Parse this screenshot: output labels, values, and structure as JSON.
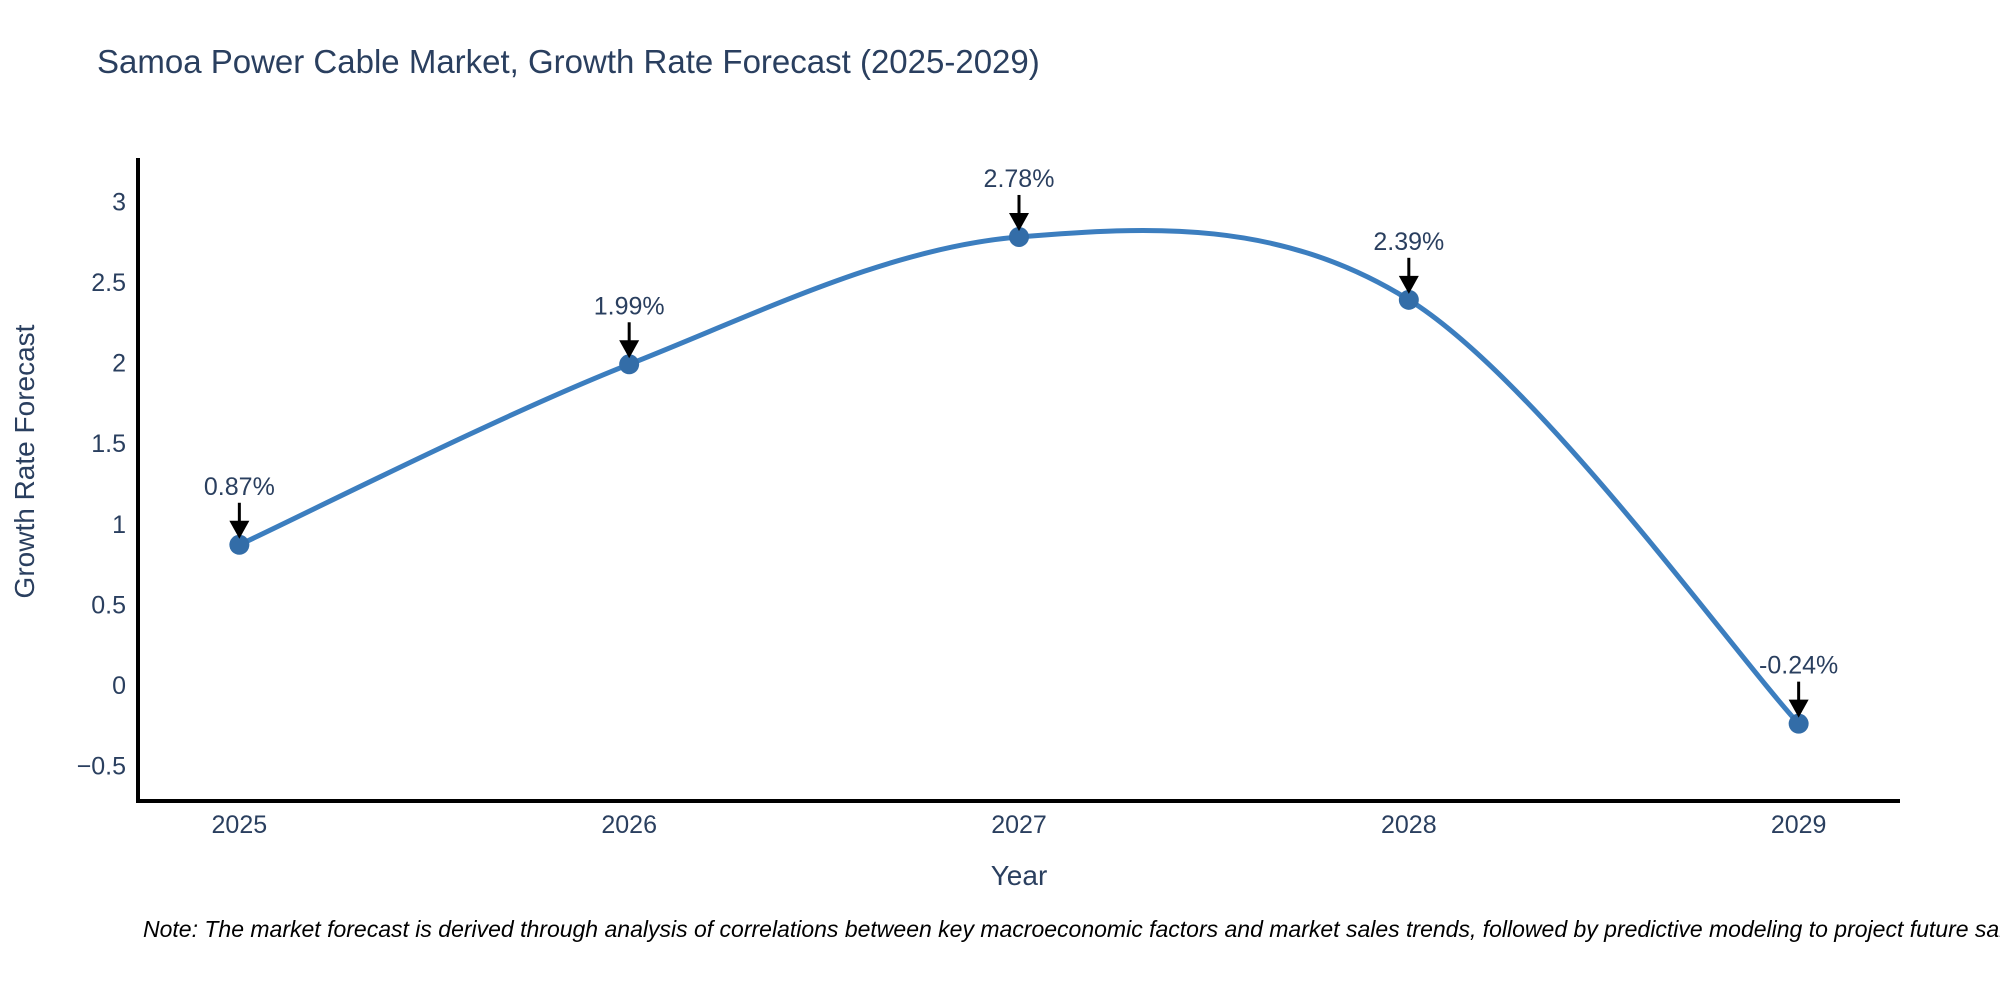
{
  "figure": {
    "title": "Samoa Power Cable Market, Growth Rate Forecast (2025-2029)",
    "note": "Note: The market forecast is derived through analysis of correlations between key macroeconomic factors and market sales trends, followed by predictive modeling to project future sales."
  },
  "chart_data": {
    "type": "line",
    "title": "Samoa Power Cable Market, Growth Rate Forecast (2025-2029)",
    "xlabel": "Year",
    "ylabel": "Growth Rate Forecast",
    "x": [
      2025,
      2026,
      2027,
      2028,
      2029
    ],
    "x_tick_labels": [
      "2025",
      "2026",
      "2027",
      "2028",
      "2029"
    ],
    "series": [
      {
        "name": "Growth Rate Forecast",
        "values": [
          0.87,
          1.99,
          2.78,
          2.39,
          -0.24
        ]
      }
    ],
    "point_labels": [
      "0.87%",
      "1.99%",
      "2.78%",
      "2.39%",
      "-0.24%"
    ],
    "y_ticks": [
      3,
      2.5,
      2,
      1.5,
      1,
      0.5,
      0,
      -0.5
    ],
    "ylim": [
      -0.72,
      3.27
    ],
    "xlim": [
      2024.74,
      2029.26
    ],
    "line_shape": "spline",
    "grid": false,
    "legend_position": "none",
    "colors": {
      "line": "#3c7ebf",
      "marker": "#336da8",
      "text": "#2a3f5f",
      "axis": "#000000",
      "annotation_arrow": "#000000",
      "note_text": "#000000"
    }
  }
}
